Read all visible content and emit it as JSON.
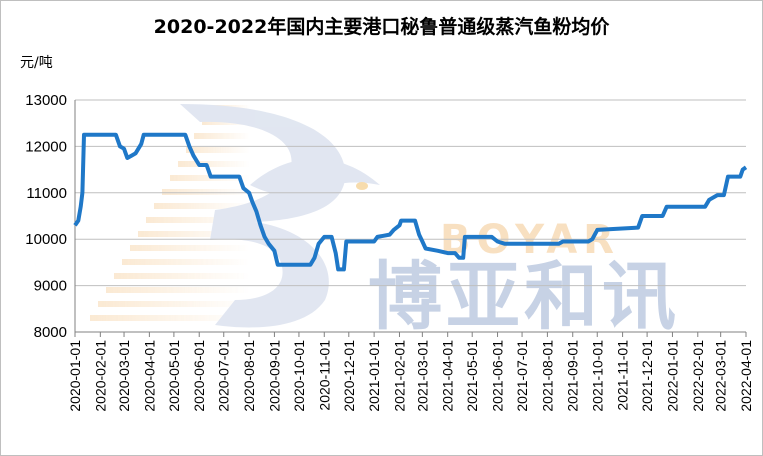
{
  "chart_data": {
    "type": "line",
    "title": "2020-2022年国内主要港口秘鲁普通级蒸汽鱼粉均价",
    "ylabel": "元/吨",
    "xlabel": "",
    "ylim": [
      8000,
      13000
    ],
    "yticks": [
      8000,
      9000,
      10000,
      11000,
      12000,
      13000
    ],
    "xticks": [
      "2020-01-01",
      "2020-02-01",
      "2020-03-01",
      "2020-04-01",
      "2020-05-01",
      "2020-06-01",
      "2020-07-01",
      "2020-08-01",
      "2020-09-01",
      "2020-10-01",
      "2020-11-01",
      "2020-12-01",
      "2021-01-01",
      "2021-02-01",
      "2021-03-01",
      "2021-04-01",
      "2021-05-01",
      "2021-06-01",
      "2021-07-01",
      "2021-08-01",
      "2021-09-01",
      "2021-10-01",
      "2021-11-01",
      "2021-12-01",
      "2022-01-01",
      "2022-02-01",
      "2022-03-01",
      "2022-04-01"
    ],
    "grid": true,
    "series": [
      {
        "color": "#1f78c8",
        "points": [
          [
            "2020-01-01",
            10300
          ],
          [
            "2020-01-05",
            10400
          ],
          [
            "2020-01-08",
            10700
          ],
          [
            "2020-01-10",
            11000
          ],
          [
            "2020-01-12",
            12250
          ],
          [
            "2020-02-20",
            12250
          ],
          [
            "2020-02-25",
            12000
          ],
          [
            "2020-03-01",
            11950
          ],
          [
            "2020-03-05",
            11750
          ],
          [
            "2020-03-10",
            11800
          ],
          [
            "2020-03-15",
            11850
          ],
          [
            "2020-03-22",
            12050
          ],
          [
            "2020-03-25",
            12250
          ],
          [
            "2020-05-15",
            12250
          ],
          [
            "2020-05-20",
            12000
          ],
          [
            "2020-05-25",
            11800
          ],
          [
            "2020-06-01",
            11600
          ],
          [
            "2020-06-10",
            11600
          ],
          [
            "2020-06-15",
            11350
          ],
          [
            "2020-07-20",
            11350
          ],
          [
            "2020-07-25",
            11100
          ],
          [
            "2020-08-01",
            11000
          ],
          [
            "2020-08-05",
            10800
          ],
          [
            "2020-08-10",
            10600
          ],
          [
            "2020-08-15",
            10300
          ],
          [
            "2020-08-20",
            10050
          ],
          [
            "2020-08-25",
            9900
          ],
          [
            "2020-09-01",
            9750
          ],
          [
            "2020-09-05",
            9450
          ],
          [
            "2020-10-15",
            9450
          ],
          [
            "2020-10-20",
            9600
          ],
          [
            "2020-10-25",
            9900
          ],
          [
            "2020-11-01",
            10050
          ],
          [
            "2020-11-10",
            10050
          ],
          [
            "2020-11-15",
            9700
          ],
          [
            "2020-11-18",
            9350
          ],
          [
            "2020-11-25",
            9350
          ],
          [
            "2020-11-28",
            9950
          ],
          [
            "2021-01-01",
            9950
          ],
          [
            "2021-01-05",
            10050
          ],
          [
            "2021-01-20",
            10100
          ],
          [
            "2021-01-25",
            10200
          ],
          [
            "2021-02-01",
            10300
          ],
          [
            "2021-02-03",
            10400
          ],
          [
            "2021-02-20",
            10400
          ],
          [
            "2021-02-25",
            10100
          ],
          [
            "2021-03-01",
            9950
          ],
          [
            "2021-03-05",
            9800
          ],
          [
            "2021-03-20",
            9750
          ],
          [
            "2021-04-01",
            9700
          ],
          [
            "2021-04-10",
            9700
          ],
          [
            "2021-04-15",
            9600
          ],
          [
            "2021-04-20",
            9600
          ],
          [
            "2021-04-22",
            10050
          ],
          [
            "2021-05-25",
            10050
          ],
          [
            "2021-06-01",
            9950
          ],
          [
            "2021-06-10",
            9900
          ],
          [
            "2021-08-15",
            9900
          ],
          [
            "2021-08-20",
            9950
          ],
          [
            "2021-09-20",
            9950
          ],
          [
            "2021-09-25",
            10000
          ],
          [
            "2021-10-01",
            10200
          ],
          [
            "2021-11-20",
            10250
          ],
          [
            "2021-11-25",
            10500
          ],
          [
            "2021-12-20",
            10500
          ],
          [
            "2021-12-25",
            10700
          ],
          [
            "2022-02-10",
            10700
          ],
          [
            "2022-02-15",
            10850
          ],
          [
            "2022-02-25",
            10950
          ],
          [
            "2022-03-05",
            10950
          ],
          [
            "2022-03-10",
            11350
          ],
          [
            "2022-03-25",
            11350
          ],
          [
            "2022-03-28",
            11500
          ],
          [
            "2022-04-01",
            11550
          ]
        ]
      }
    ]
  },
  "watermark": {
    "company_cn": "博亚和讯",
    "company_en": "BOYAR"
  }
}
